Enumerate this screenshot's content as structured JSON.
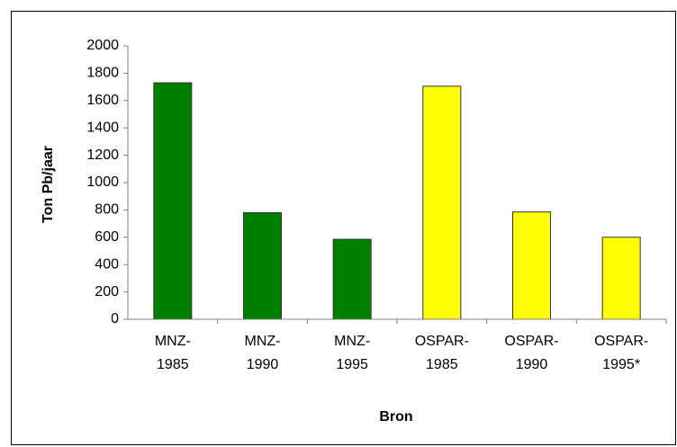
{
  "chart_data": {
    "type": "bar",
    "x_label": "Bron",
    "y_label": "Ton Pb/jaar",
    "categories": [
      "MNZ-\n1985",
      "MNZ-\n1990",
      "MNZ-\n1995",
      "OSPAR-\n1985",
      "OSPAR-\n1990",
      "OSPAR-\n1995*"
    ],
    "values": [
      1730,
      780,
      585,
      1705,
      785,
      600
    ],
    "colors": [
      "#007f00",
      "#007f00",
      "#007f00",
      "#ffff00",
      "#ffff00",
      "#ffff00"
    ],
    "ylim": [
      0,
      2000
    ],
    "yticks": [
      0,
      200,
      400,
      600,
      800,
      1000,
      1200,
      1400,
      1600,
      1800,
      2000
    ],
    "grid": false
  }
}
